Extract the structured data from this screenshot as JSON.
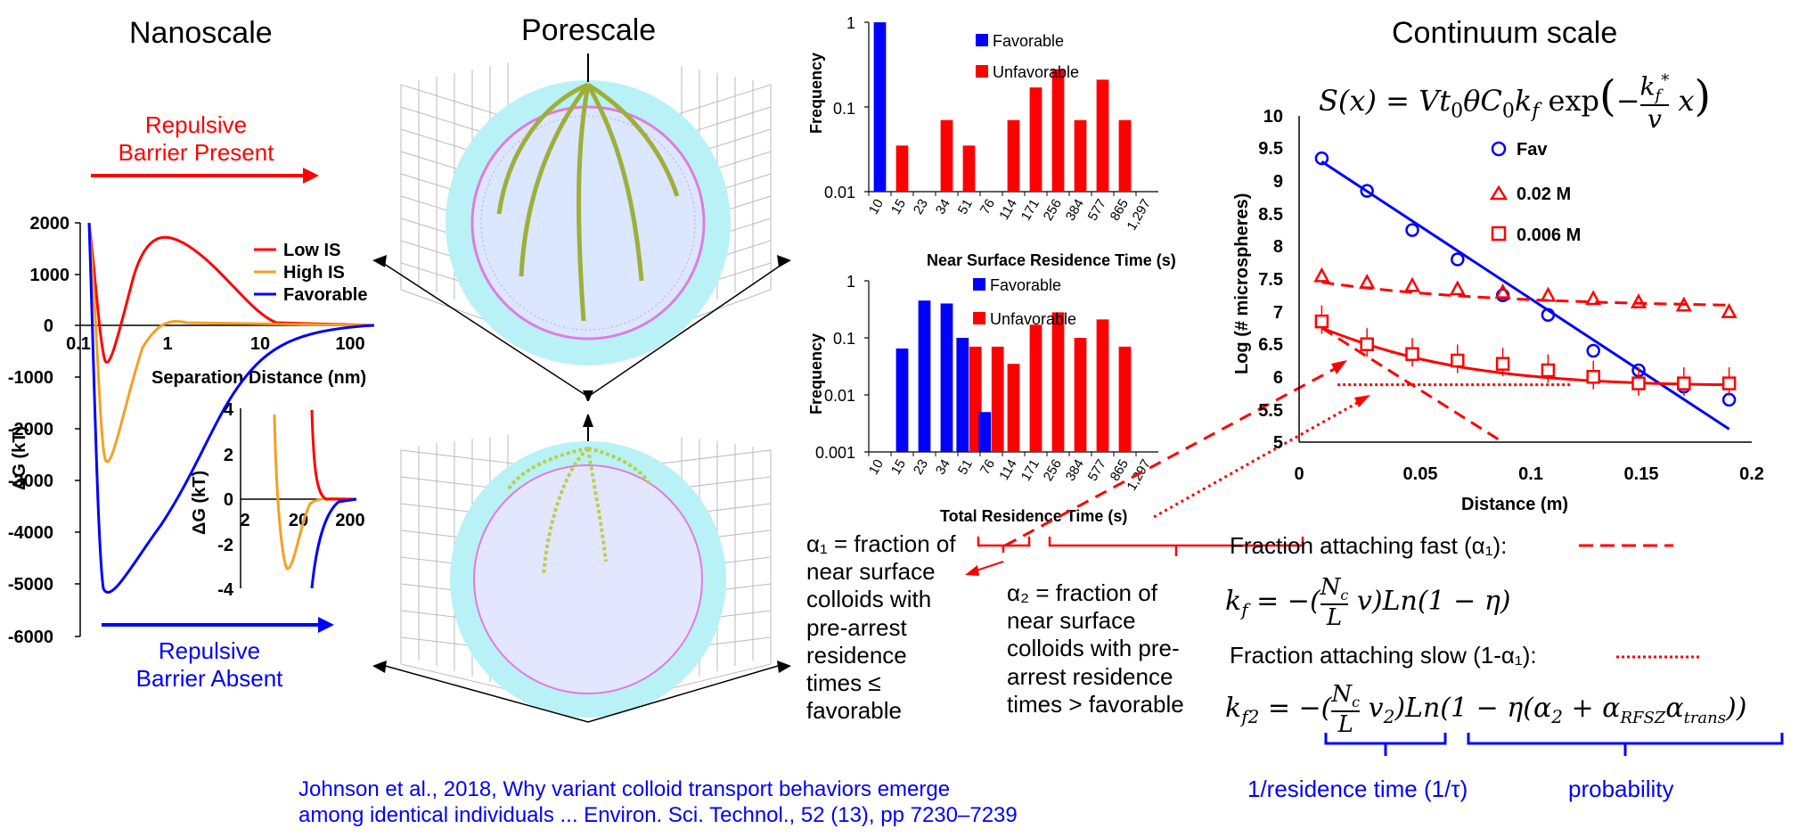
{
  "headings": {
    "nanoscale": "Nanoscale",
    "porescale": "Porescale",
    "continuum": "Continuum scale"
  },
  "nano": {
    "arrow_top": "Repulsive\nBarrier Present",
    "arrow_top_l1": "Repulsive",
    "arrow_top_l2": "Barrier Present",
    "arrow_bottom_l1": "Repulsive",
    "arrow_bottom_l2": "Barrier Absent",
    "ylabel": "ΔG (kT)",
    "xlabel": "Separation Distance (nm)",
    "yticks": [
      "2000",
      "1000",
      "0",
      "-1000",
      "-2000",
      "-3000",
      "-4000",
      "-5000",
      "-6000"
    ],
    "xticks": [
      "0.1",
      "1",
      "10",
      "100"
    ],
    "legend": [
      "Low IS",
      "High IS",
      "Favorable"
    ],
    "inset_yticks": [
      "4",
      "2",
      "0",
      "-2",
      "-4"
    ],
    "inset_xticks": [
      "2",
      "20",
      "200"
    ],
    "inset_ylabel": "ΔG (kT)"
  },
  "histo_top": {
    "ylabel": "Frequency",
    "xlabel": "Near Surface Residence Time (s)",
    "yticks": [
      "1",
      "0.1",
      "0.01"
    ],
    "categories": [
      "10",
      "15",
      "23",
      "34",
      "51",
      "76",
      "114",
      "171",
      "256",
      "384",
      "577",
      "865",
      "1,297"
    ],
    "legend": [
      "Favorable",
      "Unfavorable"
    ]
  },
  "histo_bottom": {
    "ylabel": "Frequency",
    "xlabel": "Total Residence Time (s)",
    "yticks": [
      "1",
      "0.1",
      "0.01",
      "0.001"
    ],
    "categories": [
      "10",
      "15",
      "23",
      "34",
      "51",
      "76",
      "114",
      "171",
      "256",
      "384",
      "577",
      "865",
      "1,297"
    ],
    "legend": [
      "Favorable",
      "Unfavorable"
    ]
  },
  "chart_data": [
    {
      "type": "bar",
      "title": "",
      "xlabel": "Near Surface Residence Time (s)",
      "ylabel": "Frequency",
      "yscale": "log",
      "ylim": [
        0.01,
        1
      ],
      "categories": [
        "10",
        "15",
        "23",
        "34",
        "51",
        "76",
        "114",
        "171",
        "256",
        "384",
        "577",
        "865",
        "1,297"
      ],
      "series": [
        {
          "name": "Favorable",
          "color": "#0000ff",
          "values": [
            1,
            null,
            null,
            null,
            null,
            null,
            null,
            null,
            null,
            null,
            null,
            null,
            null
          ]
        },
        {
          "name": "Unfavorable",
          "color": "#ff0000",
          "values": [
            null,
            0.035,
            null,
            0.07,
            0.035,
            null,
            0.07,
            0.17,
            0.28,
            0.07,
            0.21,
            0.07,
            null
          ]
        }
      ]
    },
    {
      "type": "bar",
      "title": "",
      "xlabel": "Total Residence Time (s)",
      "ylabel": "Frequency",
      "yscale": "log",
      "ylim": [
        0.001,
        1
      ],
      "categories": [
        "10",
        "15",
        "23",
        "34",
        "51",
        "76",
        "114",
        "171",
        "256",
        "384",
        "577",
        "865",
        "1,297"
      ],
      "series": [
        {
          "name": "Favorable",
          "color": "#0000ff",
          "values": [
            null,
            0.065,
            0.45,
            0.4,
            0.1,
            0.005,
            null,
            null,
            null,
            null,
            null,
            null,
            null
          ]
        },
        {
          "name": "Unfavorable",
          "color": "#ff0000",
          "values": [
            null,
            null,
            null,
            null,
            0.07,
            0.07,
            0.035,
            0.17,
            0.28,
            0.1,
            0.21,
            0.07,
            null
          ]
        }
      ]
    },
    {
      "type": "scatter",
      "title": "",
      "xlabel": "Distance (m)",
      "ylabel": "Log (# microspheres)",
      "xlim": [
        0,
        0.2
      ],
      "ylim": [
        5,
        10
      ],
      "xticks": [
        "0",
        "0.05",
        "0.1",
        "0.15",
        "0.2"
      ],
      "yticks": [
        "10",
        "9.5",
        "9",
        "8.5",
        "8",
        "7.5",
        "7",
        "6.5",
        "6",
        "5.5",
        "5"
      ],
      "series": [
        {
          "name": "Fav",
          "color": "#0000ff",
          "marker": "circle",
          "x": [
            0.01,
            0.03,
            0.05,
            0.07,
            0.09,
            0.11,
            0.13,
            0.15,
            0.17,
            0.19
          ],
          "y": [
            9.35,
            8.85,
            8.25,
            7.8,
            7.25,
            6.95,
            6.4,
            6.1,
            5.85,
            5.65
          ]
        },
        {
          "name": "0.02 M",
          "color": "#ff0000",
          "marker": "triangle",
          "x": [
            0.01,
            0.03,
            0.05,
            0.07,
            0.09,
            0.11,
            0.13,
            0.15,
            0.17,
            0.19
          ],
          "y": [
            7.55,
            7.45,
            7.4,
            7.35,
            7.3,
            7.25,
            7.2,
            7.15,
            7.1,
            7.0
          ]
        },
        {
          "name": "0.006 M",
          "color": "#ff0000",
          "marker": "square",
          "x": [
            0.01,
            0.03,
            0.05,
            0.07,
            0.09,
            0.11,
            0.13,
            0.15,
            0.17,
            0.19
          ],
          "y": [
            6.85,
            6.5,
            6.35,
            6.25,
            6.2,
            6.1,
            6.0,
            5.9,
            5.9,
            5.9
          ]
        }
      ]
    }
  ],
  "continuum": {
    "equation_top": "S(x) = Vt₀θC₀k_f exp(−(k_f*/v) x)",
    "xlabel": "Distance (m)",
    "ylabel": "Log (# microspheres)",
    "legend": [
      "Fav",
      "0.02 M",
      "0.006 M"
    ],
    "fast_label": "Fraction attaching fast (α₁):",
    "kf_eq": "k_f = −(N_c/L v) Ln(1 − η)",
    "slow_label": "Fraction attaching slow (1-α₁):",
    "kf2_eq": "k_f2 = −(N_c/L v₂) Ln(1 − η(α₂ + α_RFSZ α_trans))",
    "brace_left": "1/residence time (1/τ)",
    "brace_right": "probability"
  },
  "annotations": {
    "alpha1_lines": [
      "α₁ = fraction of",
      "near surface",
      "colloids with",
      "pre-arrest",
      "residence",
      "times ≤",
      "favorable"
    ],
    "alpha2_lines": [
      "α₂ = fraction of",
      "near surface",
      "colloids with pre-",
      "arrest residence",
      "times > favorable"
    ]
  },
  "citation": {
    "line1": "Johnson et al., 2018, Why variant colloid transport behaviors emerge",
    "line2": "among identical individuals ... Environ. Sci. Technol., 52 (13), pp 7230–7239"
  },
  "colors": {
    "red": "#ff0000",
    "blue": "#0000ff",
    "orange": "#f5a020",
    "cyan": "#b8f2f7"
  }
}
